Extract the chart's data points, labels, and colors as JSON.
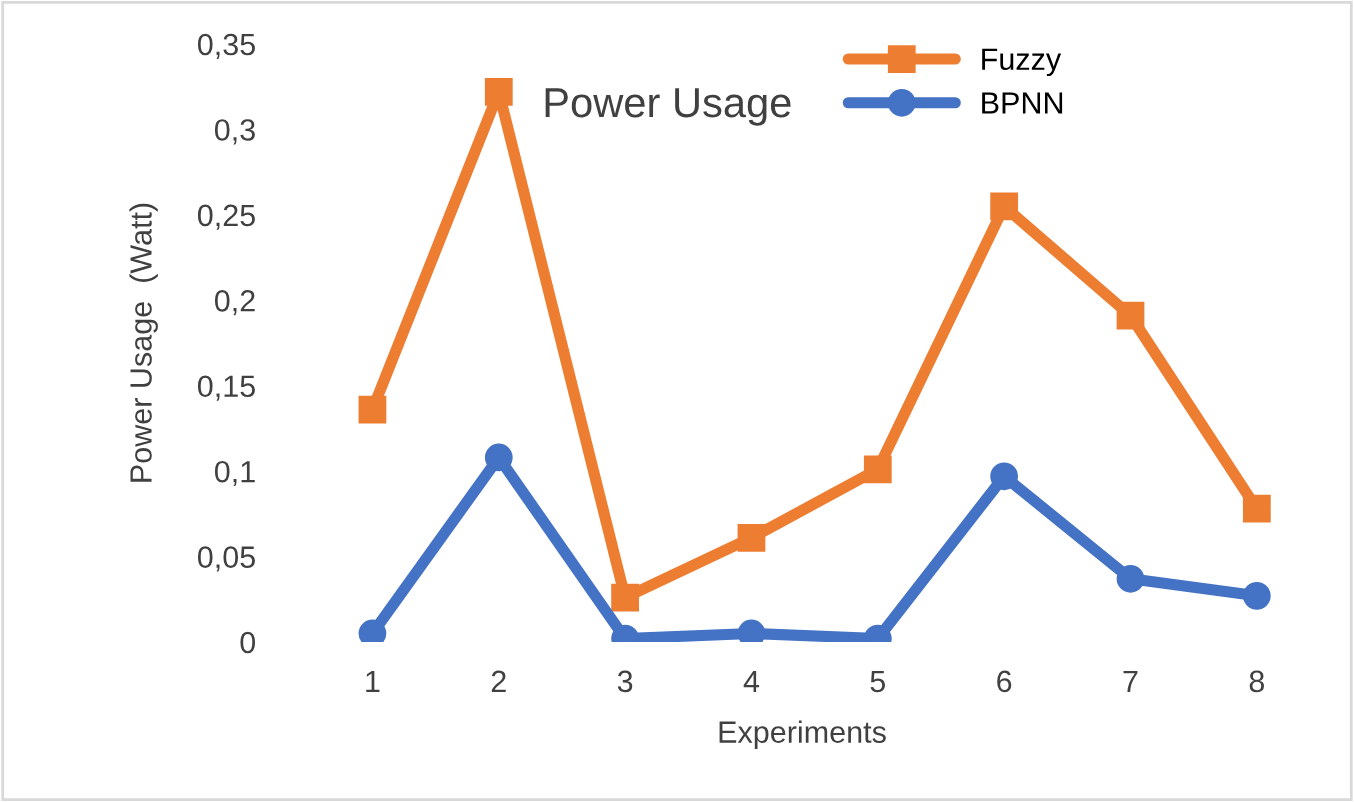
{
  "chart_data": {
    "type": "line",
    "title": "Power Usage",
    "xlabel": "Experiments",
    "ylabel": "Power Usage  (Watt)",
    "categories": [
      "1",
      "2",
      "3",
      "4",
      "5",
      "6",
      "7",
      "8"
    ],
    "series": [
      {
        "name": "Fuzzy",
        "color": "#ed7d31",
        "marker": "square",
        "values": [
          0.136,
          0.322,
          0.026,
          0.061,
          0.101,
          0.255,
          0.191,
          0.078
        ]
      },
      {
        "name": "BPNN",
        "color": "#4472c4",
        "marker": "circle",
        "values": [
          0.005,
          0.108,
          0.002,
          0.005,
          0.002,
          0.097,
          0.037,
          0.027
        ]
      }
    ],
    "ylim": [
      0,
      0.35
    ],
    "yticks": [
      0,
      {
        "value": 0.05,
        "label": "0,05"
      },
      {
        "value": 0.1,
        "label": "0,1"
      },
      {
        "value": 0.15,
        "label": "0,15"
      },
      {
        "value": 0.2,
        "label": "0,2"
      },
      {
        "value": 0.25,
        "label": "0,25"
      },
      {
        "value": 0.3,
        "label": "0,3"
      },
      {
        "value": 0.35,
        "label": "0,35"
      }
    ],
    "grid": false,
    "legend": "top right",
    "line_style": "solid"
  }
}
